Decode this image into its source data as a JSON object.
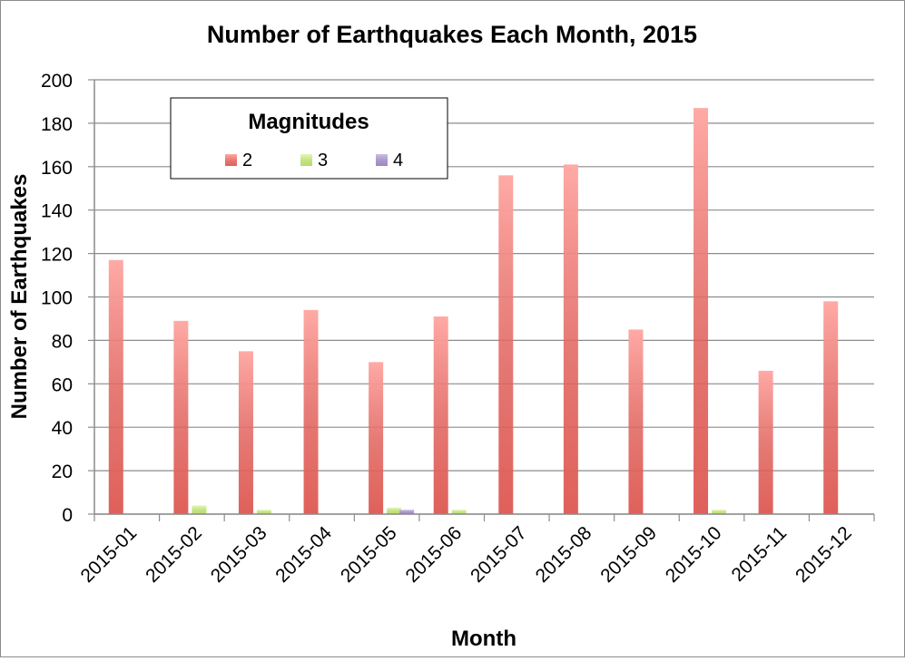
{
  "chart_data": {
    "type": "bar",
    "title": "Number of Earthquakes Each Month, 2015",
    "xlabel": "Month",
    "ylabel": "Number of Earthquakes",
    "ylim": [
      0,
      200
    ],
    "yticks": [
      0,
      20,
      40,
      60,
      80,
      100,
      120,
      140,
      160,
      180,
      200
    ],
    "categories": [
      "2015-01",
      "2015-02",
      "2015-03",
      "2015-04",
      "2015-05",
      "2015-06",
      "2015-07",
      "2015-08",
      "2015-09",
      "2015-10",
      "2015-11",
      "2015-12"
    ],
    "series": [
      {
        "name": "2",
        "color": "#e0605a",
        "values": [
          117,
          89,
          75,
          94,
          70,
          91,
          156,
          161,
          85,
          187,
          66,
          98
        ]
      },
      {
        "name": "3",
        "color": "#b8dc6c",
        "values": [
          0,
          4,
          2,
          0,
          3,
          2,
          0,
          0,
          0,
          2,
          0,
          0
        ]
      },
      {
        "name": "4",
        "color": "#9b86c4",
        "values": [
          0,
          0,
          0,
          0,
          2,
          0,
          0,
          0,
          0,
          0,
          0,
          0
        ]
      }
    ],
    "legend": {
      "title": "Magnitudes",
      "position": "top-left"
    },
    "grid": true
  }
}
